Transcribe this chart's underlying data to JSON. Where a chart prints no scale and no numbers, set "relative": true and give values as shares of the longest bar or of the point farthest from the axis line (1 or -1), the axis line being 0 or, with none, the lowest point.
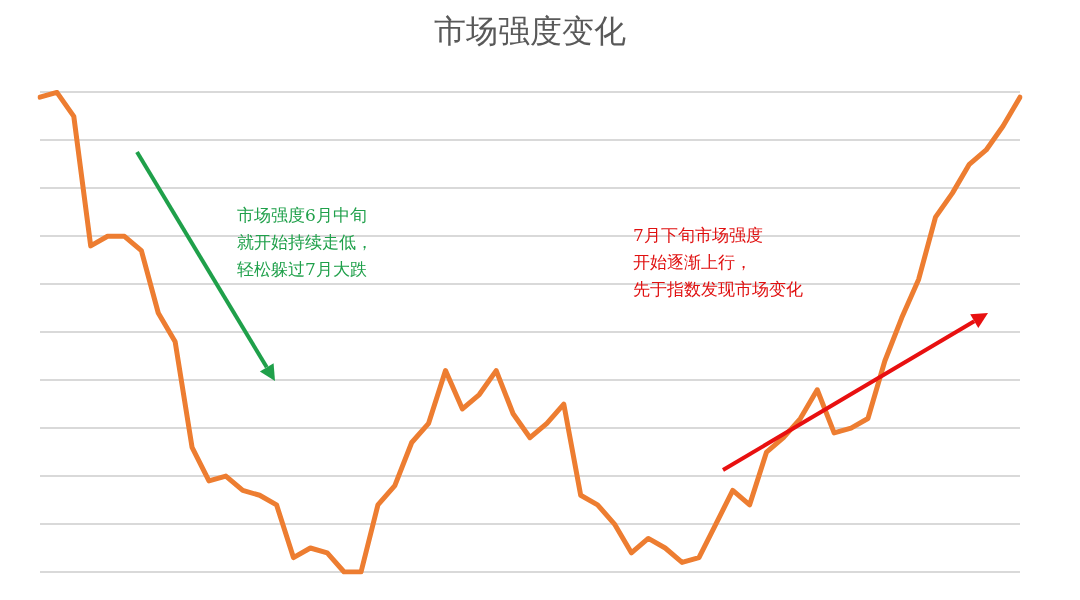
{
  "chart_data": {
    "type": "line",
    "title": "市场强度变化",
    "relative": true,
    "grid": "y",
    "marker": "none",
    "line_style": "solid",
    "categories": [
      null,
      null,
      null,
      null,
      null,
      null,
      null,
      null,
      null,
      null,
      null,
      null,
      null,
      null,
      null,
      null,
      null,
      null,
      null,
      null,
      null,
      null,
      null,
      null,
      null,
      null,
      null,
      null,
      null,
      null,
      null,
      null,
      null,
      null,
      null,
      null,
      null,
      null,
      null,
      null,
      null,
      null,
      null,
      null,
      null,
      null,
      null,
      null,
      null,
      null,
      null,
      null,
      null,
      null,
      null,
      null,
      null,
      null,
      null
    ],
    "series": [
      {
        "color": "#ed7d31",
        "values": [
          0.99,
          1,
          0.95,
          0.68,
          0.7,
          0.7,
          0.67,
          0.54,
          0.48,
          0.26,
          0.19,
          0.2,
          0.17,
          0.16,
          0.14,
          0.03,
          0.05,
          0.04,
          0,
          0,
          0.14,
          0.18,
          0.27,
          0.31,
          0.42,
          0.34,
          0.37,
          0.42,
          0.33,
          0.28,
          0.31,
          0.35,
          0.16,
          0.14,
          0.1,
          0.04,
          0.07,
          0.05,
          0.02,
          0.03,
          0.1,
          0.17,
          0.14,
          0.25,
          0.28,
          0.32,
          0.38,
          0.29,
          0.3,
          0.32,
          0.44,
          0.53,
          0.61,
          0.74,
          0.79,
          0.85,
          0.88,
          0.93,
          0.99
        ]
      }
    ],
    "annotations": [
      "市场强度6月中旬",
      "就开始持续走低，",
      "轻松躲过7月大跌",
      "7月下旬市场强度",
      "开始逐渐上行，",
      "先于指数发现市场变化"
    ]
  }
}
